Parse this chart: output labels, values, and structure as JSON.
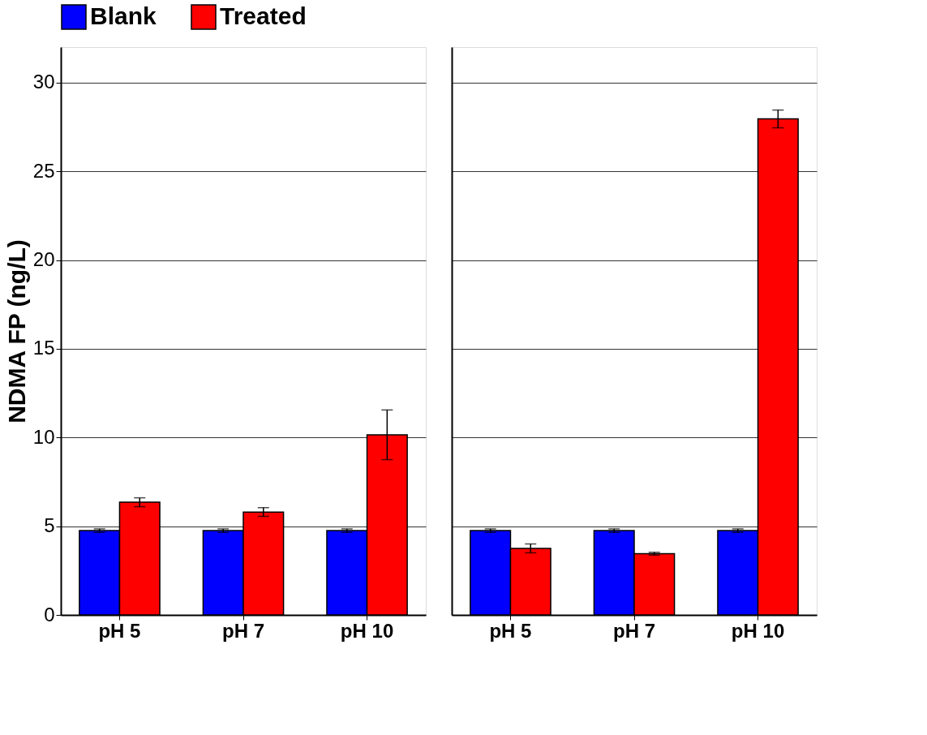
{
  "chart_data": [
    {
      "type": "bar",
      "ylabel": "NDMA FP (ng/L)",
      "categories": [
        "pH 5",
        "pH 7",
        "pH 10"
      ],
      "series": [
        {
          "name": "Blank",
          "color": "#0000ff",
          "values": [
            4.75,
            4.75,
            4.75
          ],
          "errors": [
            0.1,
            0.1,
            0.1
          ]
        },
        {
          "name": "Treated",
          "color": "#ff0000",
          "values": [
            6.35,
            5.8,
            10.15
          ],
          "errors": [
            0.25,
            0.25,
            1.4
          ]
        }
      ],
      "ylim": [
        0,
        32
      ],
      "yticks": [
        0,
        5,
        10,
        15,
        20,
        25,
        30
      ],
      "grid": "y",
      "legend": "top"
    },
    {
      "type": "bar",
      "categories": [
        "pH 5",
        "pH 7",
        "pH 10"
      ],
      "series": [
        {
          "name": "Blank",
          "color": "#0000ff",
          "values": [
            4.75,
            4.75,
            4.75
          ],
          "errors": [
            0.1,
            0.1,
            0.1
          ]
        },
        {
          "name": "Treated",
          "color": "#ff0000",
          "values": [
            3.75,
            3.45,
            27.95
          ],
          "errors": [
            0.25,
            0.08,
            0.5
          ]
        }
      ],
      "ylim": [
        0,
        32
      ],
      "yticks": [
        0,
        5,
        10,
        15,
        20,
        25,
        30
      ],
      "grid": "y",
      "tick_labels": "x"
    }
  ]
}
